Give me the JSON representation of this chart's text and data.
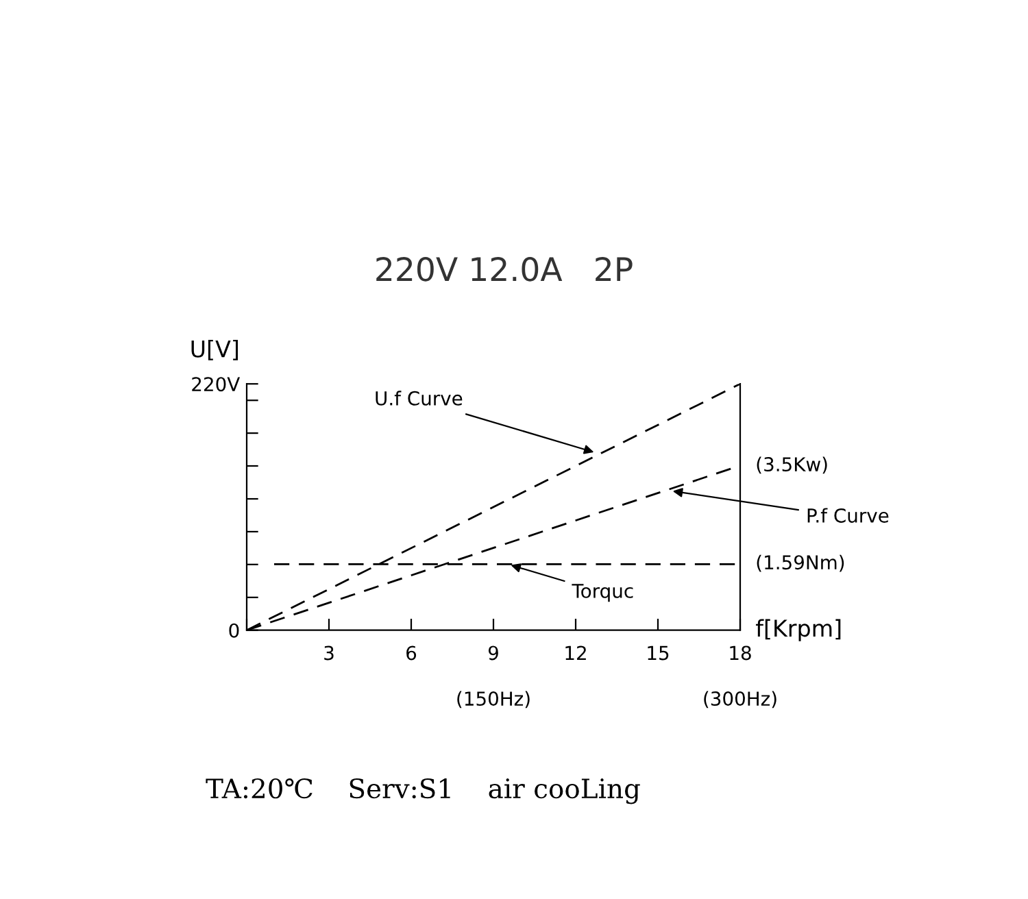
{
  "chart_data": {
    "type": "line",
    "title": "220V 12.0A   2P",
    "xlabel": "f[Krpm]",
    "ylabel": "U[V]",
    "xlim": [
      0,
      18
    ],
    "xticks": [
      {
        "value": 0,
        "label": null
      },
      3,
      6,
      9,
      12,
      15,
      18
    ],
    "ylim": [
      0,
      220
    ],
    "yticks": [
      0,
      {
        "value": 29.3,
        "label": null
      },
      {
        "value": 58.7,
        "label": null
      },
      {
        "value": 88,
        "label": null
      },
      {
        "value": 117.3,
        "label": null
      },
      {
        "value": 146.7,
        "label": null
      },
      {
        "value": 176,
        "label": null
      },
      {
        "value": 205.3,
        "label": null
      },
      {
        "value": 220,
        "label": "220V"
      }
    ],
    "x2lim": [
      0,
      300
    ],
    "x2ticks": [
      {
        "value": 150,
        "label": "(150Hz)"
      },
      {
        "value": 300,
        "label": "(300Hz)"
      }
    ],
    "line_style": "dashed",
    "marker": "none",
    "grid": false,
    "legend": false,
    "series": [
      {
        "color": "#000000",
        "x": [
          0,
          18
        ],
        "values": [
          0,
          220
        ]
      },
      {
        "color": "#000000",
        "x": [
          0,
          18
        ],
        "values": [
          0,
          147
        ]
      },
      {
        "color": "#000000",
        "x": [
          1,
          18
        ],
        "values": [
          59,
          59
        ]
      }
    ],
    "annotations": [
      {
        "text": "U.f Curve",
        "x": 12.8,
        "y": 158
      },
      {
        "text": "P.f Curve",
        "x": 15.4,
        "y": 124.7
      },
      {
        "text": "Torquc",
        "x": 9.5,
        "y": 59.1
      },
      {
        "text": "(3.5Kw)",
        "x": 18,
        "y": 146.7
      },
      {
        "text": "(1.59Nm)",
        "x": 18,
        "y": 59.1
      },
      "TA:20℃    Serv:S1    air cooLing"
    ]
  }
}
